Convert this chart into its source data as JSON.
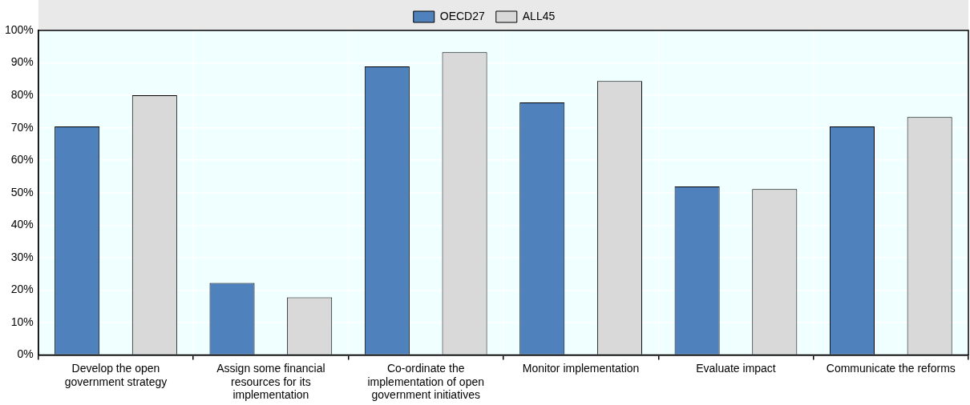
{
  "chart_data": {
    "type": "bar",
    "categories": [
      "Develop the open government strategy",
      "Assign some financial resources for its implementation",
      "Co-ordinate the implementation of open government initiatives",
      "Monitor implementation",
      "Evaluate impact",
      "Communicate the reforms"
    ],
    "series": [
      {
        "name": "OECD27",
        "color": "#4f81bd",
        "values": [
          70.4,
          22.2,
          88.9,
          77.8,
          51.9,
          70.4
        ]
      },
      {
        "name": "ALL45",
        "color": "#d9d9d9",
        "values": [
          80,
          17.8,
          93.3,
          84.4,
          51.1,
          73.3
        ]
      }
    ],
    "ylim": [
      0,
      100
    ],
    "yticks": [
      {
        "value": 0,
        "label": "0%"
      },
      {
        "value": 10,
        "label": "10%"
      },
      {
        "value": 20,
        "label": "20%"
      },
      {
        "value": 30,
        "label": "30%"
      },
      {
        "value": 40,
        "label": "40%"
      },
      {
        "value": 50,
        "label": "50%"
      },
      {
        "value": 60,
        "label": "60%"
      },
      {
        "value": 70,
        "label": "70%"
      },
      {
        "value": 80,
        "label": "80%"
      },
      {
        "value": 90,
        "label": "90%"
      },
      {
        "value": 100,
        "label": "100%"
      }
    ],
    "grid": true,
    "legend": "top"
  }
}
